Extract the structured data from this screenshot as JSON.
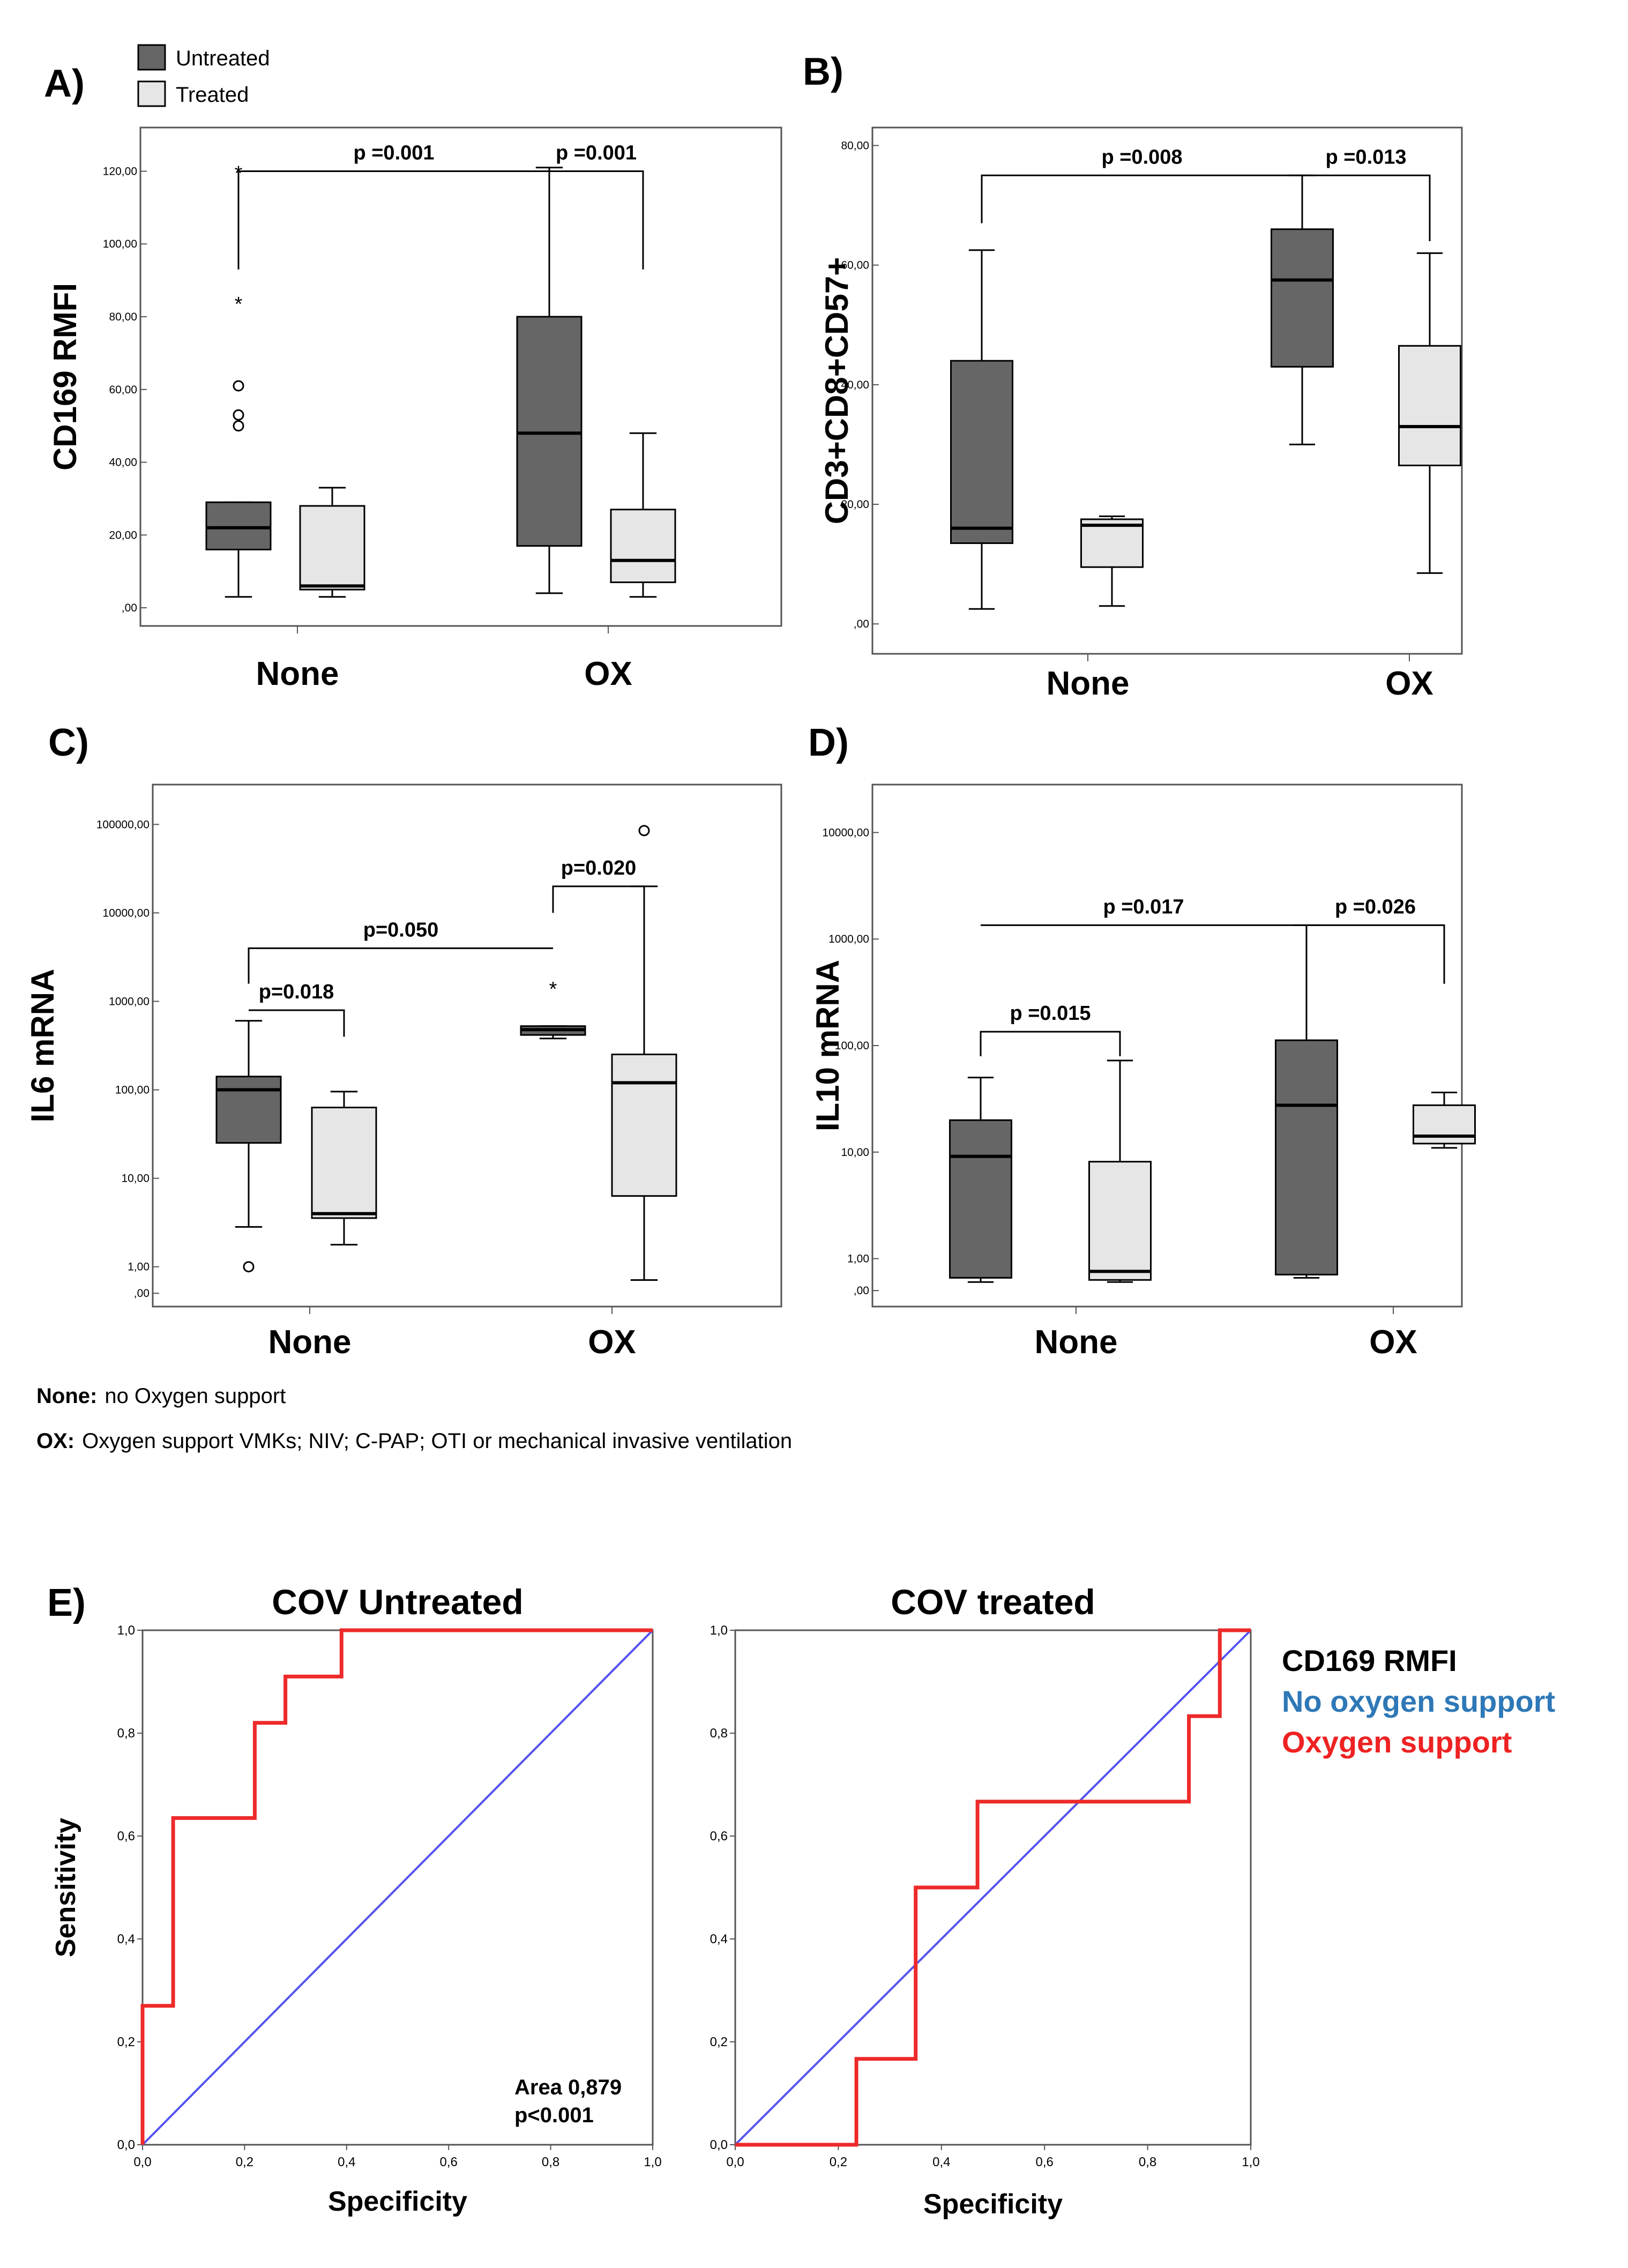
{
  "legend": {
    "untreated": "Untreated",
    "treated": "Treated"
  },
  "colors": {
    "untreated": "#666666",
    "treated": "#e6e6e6",
    "roc_line": "#ee2a2a",
    "diagonal": "#5454ee",
    "no_oxygen_text": "#2e78b7",
    "oxygen_text": "#ee2222"
  },
  "notes": {
    "none_key": "None:",
    "none_text": "no Oxygen support",
    "ox_key": "OX:",
    "ox_text": "Oxygen support  VMKs; NIV;  C-PAP;  OTI or mechanical invasive  ventilation"
  },
  "chart_data": [
    {
      "id": "A",
      "panel_label": "A)",
      "type": "box",
      "scale": "linear",
      "ylabel": "CD169 RMFI",
      "categories": [
        "None",
        "OX"
      ],
      "series_order": [
        "Untreated",
        "Treated"
      ],
      "ylim": [
        -5,
        132
      ],
      "yticks": [
        {
          "v": 0,
          "t": ",00"
        },
        {
          "v": 20,
          "t": "20,00"
        },
        {
          "v": 40,
          "t": "40,00"
        },
        {
          "v": 60,
          "t": "60,00"
        },
        {
          "v": 80,
          "t": "80,00"
        },
        {
          "v": 100,
          "t": "100,00"
        },
        {
          "v": 120,
          "t": "120,00"
        }
      ],
      "boxes": [
        {
          "category": "None",
          "series": "Untreated",
          "whisker_low": 3,
          "q1": 16,
          "median": 22,
          "q3": 29,
          "whisker_high": 29,
          "outliers": [
            {
              "v": 50,
              "m": "o"
            },
            {
              "v": 53,
              "m": "o"
            },
            {
              "v": 61,
              "m": "o"
            },
            {
              "v": 84,
              "m": "*"
            },
            {
              "v": 120,
              "m": "*"
            }
          ]
        },
        {
          "category": "None",
          "series": "Treated",
          "whisker_low": 3,
          "q1": 5,
          "median": 6,
          "q3": 28,
          "whisker_high": 33,
          "outliers": []
        },
        {
          "category": "OX",
          "series": "Untreated",
          "whisker_low": 4,
          "q1": 17,
          "median": 48,
          "q3": 80,
          "whisker_high": 121,
          "outliers": []
        },
        {
          "category": "OX",
          "series": "Treated",
          "whisker_low": 3,
          "q1": 7,
          "median": 13,
          "q3": 27,
          "whisker_high": 48,
          "outliers": []
        }
      ],
      "brackets": [
        {
          "label": "p =0.001",
          "from": [
            0,
            0
          ],
          "to": [
            1,
            0
          ],
          "from_v": 93,
          "to_v": 120,
          "top_v": 120
        },
        {
          "label": "p =0.001",
          "from": [
            1,
            0
          ],
          "to": [
            1,
            1
          ],
          "from_v": 120,
          "to_v": 93,
          "top_v": 120
        }
      ]
    },
    {
      "id": "B",
      "panel_label": "B)",
      "type": "box",
      "scale": "linear",
      "ylabel": "CD3+CD8+CD57+",
      "categories": [
        "None",
        "OX"
      ],
      "series_order": [
        "Untreated",
        "Treated"
      ],
      "ylim": [
        -5,
        83
      ],
      "yticks": [
        {
          "v": 0,
          "t": ",00"
        },
        {
          "v": 20,
          "t": "20,00"
        },
        {
          "v": 40,
          "t": "40,00"
        },
        {
          "v": 60,
          "t": "60,00"
        },
        {
          "v": 80,
          "t": "80,00"
        }
      ],
      "boxes": [
        {
          "category": "None",
          "series": "Untreated",
          "whisker_low": 2.5,
          "q1": 13.5,
          "median": 16,
          "q3": 44,
          "whisker_high": 62.5,
          "outliers": []
        },
        {
          "category": "None",
          "series": "Treated",
          "whisker_low": 3,
          "q1": 9.5,
          "median": 16.5,
          "q3": 17.5,
          "whisker_high": 18,
          "outliers": []
        },
        {
          "category": "OX",
          "series": "Untreated",
          "whisker_low": 30,
          "q1": 43,
          "median": 57.5,
          "q3": 66,
          "whisker_high": 75,
          "outliers": []
        },
        {
          "category": "OX",
          "series": "Treated",
          "whisker_low": 8.5,
          "q1": 26.5,
          "median": 33,
          "q3": 46.5,
          "whisker_high": 62,
          "outliers": []
        }
      ],
      "brackets": [
        {
          "label": "p =0.008",
          "from": [
            0,
            0
          ],
          "to": [
            1,
            0
          ],
          "from_v": 67,
          "to_v": 75,
          "top_v": 75
        },
        {
          "label": "p =0.013",
          "from": [
            1,
            0
          ],
          "to": [
            1,
            1
          ],
          "from_v": 75,
          "to_v": 64,
          "top_v": 75
        }
      ]
    },
    {
      "id": "C",
      "panel_label": "C)",
      "type": "box",
      "scale": "log",
      "ylabel": "IL6 mRNA",
      "categories": [
        "None",
        "OX"
      ],
      "series_order": [
        "Untreated",
        "Treated"
      ],
      "ylim": [
        -0.45,
        5.45
      ],
      "yticks": [
        {
          "v": -0.3,
          "t": ",00"
        },
        {
          "v": 0,
          "t": "1,00"
        },
        {
          "v": 1,
          "t": "10,00"
        },
        {
          "v": 2,
          "t": "100,00"
        },
        {
          "v": 3,
          "t": "1000,00"
        },
        {
          "v": 4,
          "t": "10000,00"
        },
        {
          "v": 5,
          "t": "100000,00"
        }
      ],
      "boxes": [
        {
          "category": "None",
          "series": "Untreated",
          "whisker_low": 0.45,
          "q1": 1.4,
          "median": 2.0,
          "q3": 2.15,
          "whisker_high": 2.78,
          "outliers": [
            {
              "v": 0.0,
              "m": "o"
            }
          ]
        },
        {
          "category": "None",
          "series": "Treated",
          "whisker_low": 0.25,
          "q1": 0.55,
          "median": 0.6,
          "q3": 1.8,
          "whisker_high": 1.98,
          "outliers": []
        },
        {
          "category": "OX",
          "series": "Untreated",
          "whisker_low": 2.58,
          "q1": 2.62,
          "median": 2.68,
          "q3": 2.72,
          "whisker_high": 2.72,
          "outliers": [
            {
              "v": 3.16,
              "m": "*"
            }
          ]
        },
        {
          "category": "OX",
          "series": "Treated",
          "whisker_low": -0.15,
          "q1": 0.8,
          "median": 2.08,
          "q3": 2.4,
          "whisker_high": 4.3,
          "outliers": [
            {
              "v": 4.93,
              "m": "o"
            }
          ]
        }
      ],
      "brackets": [
        {
          "label": "p=0.050",
          "from": [
            0,
            0
          ],
          "to": [
            1,
            0
          ],
          "from_v": 3.2,
          "to_v": 3.6,
          "top_v": 3.6
        },
        {
          "label": "p=0.018",
          "from": [
            0,
            0
          ],
          "to": [
            0,
            1
          ],
          "from_v": 2.9,
          "to_v": 2.6,
          "top_v": 2.9
        },
        {
          "label": "p=0.020",
          "from": [
            1,
            0
          ],
          "to": [
            1,
            1
          ],
          "from_v": 4.0,
          "to_v": 4.3,
          "top_v": 4.3
        }
      ]
    },
    {
      "id": "D",
      "panel_label": "D)",
      "type": "box",
      "scale": "log",
      "ylabel": "IL10 mRNA",
      "categories": [
        "None",
        "OX"
      ],
      "series_order": [
        "Untreated",
        "Treated"
      ],
      "ylim": [
        -0.45,
        4.45
      ],
      "yticks": [
        {
          "v": -0.3,
          "t": ",00"
        },
        {
          "v": 0,
          "t": "1,00"
        },
        {
          "v": 1,
          "t": "10,00"
        },
        {
          "v": 2,
          "t": "100,00"
        },
        {
          "v": 3,
          "t": "1000,00"
        },
        {
          "v": 4,
          "t": "10000,00"
        }
      ],
      "boxes": [
        {
          "category": "None",
          "series": "Untreated",
          "whisker_low": -0.22,
          "q1": -0.18,
          "median": 0.96,
          "q3": 1.3,
          "whisker_high": 1.7,
          "outliers": []
        },
        {
          "category": "None",
          "series": "Treated",
          "whisker_low": -0.22,
          "q1": -0.2,
          "median": -0.12,
          "q3": 0.91,
          "whisker_high": 1.86,
          "outliers": []
        },
        {
          "category": "OX",
          "series": "Untreated",
          "whisker_low": -0.18,
          "q1": -0.15,
          "median": 1.44,
          "q3": 2.05,
          "whisker_high": 3.13,
          "outliers": []
        },
        {
          "category": "OX",
          "series": "Treated",
          "whisker_low": 1.04,
          "q1": 1.08,
          "median": 1.15,
          "q3": 1.44,
          "whisker_high": 1.56,
          "outliers": []
        }
      ],
      "brackets": [
        {
          "label": "p =0.017",
          "from": [
            0,
            0
          ],
          "to": [
            1,
            0
          ],
          "from_v": 3.13,
          "to_v": 3.13,
          "top_v": 3.13
        },
        {
          "label": "p =0.015",
          "from": [
            0,
            0
          ],
          "to": [
            0,
            1
          ],
          "from_v": 1.9,
          "to_v": 1.9,
          "top_v": 2.13
        },
        {
          "label": "p =0.026",
          "from": [
            1,
            0
          ],
          "to": [
            1,
            1
          ],
          "from_v": 3.13,
          "to_v": 2.58,
          "top_v": 3.13
        }
      ]
    },
    {
      "id": "E1",
      "panel_label": "E)",
      "type": "line",
      "title": "COV Untreated",
      "xlabel": "Specificity",
      "ylabel": "Sensitivity",
      "xlim": [
        0,
        1
      ],
      "ylim": [
        0,
        1
      ],
      "ticks": [
        {
          "v": 0,
          "t": "0,0"
        },
        {
          "v": 0.2,
          "t": "0,2"
        },
        {
          "v": 0.4,
          "t": "0,4"
        },
        {
          "v": 0.6,
          "t": "0,6"
        },
        {
          "v": 0.8,
          "t": "0,8"
        },
        {
          "v": 1,
          "t": "1,0"
        }
      ],
      "roc": {
        "x": [
          0,
          0,
          0.06,
          0.06,
          0.22,
          0.22,
          0.28,
          0.28,
          0.39,
          0.39,
          1.0
        ],
        "y": [
          0,
          0.27,
          0.27,
          0.635,
          0.635,
          0.82,
          0.82,
          0.91,
          0.91,
          1.0,
          1.0
        ]
      },
      "diagonal": {
        "x": [
          0,
          1
        ],
        "y": [
          0,
          1
        ]
      },
      "annotation": {
        "line1": "Area 0,879",
        "line2": "p<0.001"
      }
    },
    {
      "id": "E2",
      "panel_label": "",
      "type": "line",
      "title": "COV treated",
      "xlabel": "Specificity",
      "ylabel": "",
      "xlim": [
        0,
        1
      ],
      "ylim": [
        0,
        1
      ],
      "ticks": [
        {
          "v": 0,
          "t": "0,0"
        },
        {
          "v": 0.2,
          "t": "0,2"
        },
        {
          "v": 0.4,
          "t": "0,4"
        },
        {
          "v": 0.6,
          "t": "0,6"
        },
        {
          "v": 0.8,
          "t": "0,8"
        },
        {
          "v": 1,
          "t": "1,0"
        }
      ],
      "roc": {
        "x": [
          0,
          0.235,
          0.235,
          0.35,
          0.35,
          0.47,
          0.47,
          0.88,
          0.88,
          0.94,
          0.94,
          1.0
        ],
        "y": [
          0,
          0,
          0.167,
          0.167,
          0.5,
          0.5,
          0.667,
          0.667,
          0.833,
          0.833,
          1.0,
          1.0
        ]
      },
      "diagonal": {
        "x": [
          0,
          1
        ],
        "y": [
          0,
          1
        ]
      }
    }
  ],
  "roc_legend": {
    "title": "CD169 RMFI",
    "no_oxygen": "No oxygen support",
    "oxygen": "Oxygen support"
  }
}
